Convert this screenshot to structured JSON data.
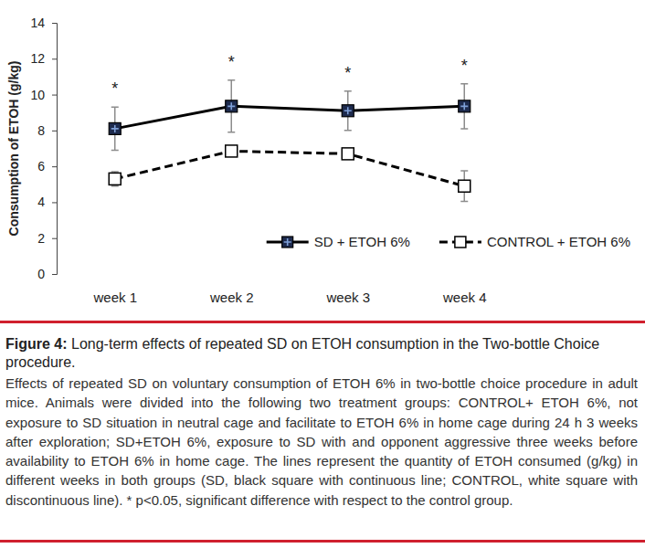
{
  "chart_data": {
    "type": "line",
    "y_label": "Consumption of ETOH (g/kg)",
    "categories": [
      "week 1",
      "week 2",
      "week 3",
      "week 4"
    ],
    "series": [
      {
        "name": "SD + ETOH 6%",
        "color": "#000000",
        "line_style": "solid",
        "marker": "square",
        "values": [
          8.1,
          9.35,
          9.1,
          9.35
        ],
        "errors": [
          1.2,
          1.45,
          1.1,
          1.25
        ]
      },
      {
        "name": "CONTROL + ETOH 6%",
        "color": "#000000",
        "line_style": "dashed",
        "marker": "open-square",
        "values": [
          5.3,
          6.85,
          6.7,
          4.9
        ],
        "errors": [
          0.4,
          0.2,
          0.2,
          0.85
        ]
      }
    ],
    "annotations": [
      "*",
      "*",
      "*",
      "*"
    ],
    "ylim": [
      0,
      14
    ],
    "yticks": [
      0,
      2,
      4,
      6,
      8,
      10,
      12,
      14
    ],
    "grid": false,
    "legend": "bottom-right"
  },
  "caption": {
    "label": "Figure 4:",
    "title": "Long-term effects of repeated SD on ETOH consumption in the Two-bottle Choice procedure.",
    "text": "Effects of repeated SD on voluntary consumption of ETOH 6% in two-bottle choice procedure in adult mice. Animals were divided into the following two treatment groups: CONTROL+ ETOH 6%, not exposure to SD situation in neutral cage and facilitate to ETOH 6% in home cage during 24 h 3 weeks after exploration; SD+ETOH 6%, exposure to SD with and opponent aggressive three weeks before availability to ETOH 6% in home cage. The lines represent the quantity of ETOH consumed (g/kg) in different weeks in both groups (SD, black square with continuous line; CONTROL, white square with discontinuous line). * p<0.05, significant difference with respect to the control group."
  }
}
